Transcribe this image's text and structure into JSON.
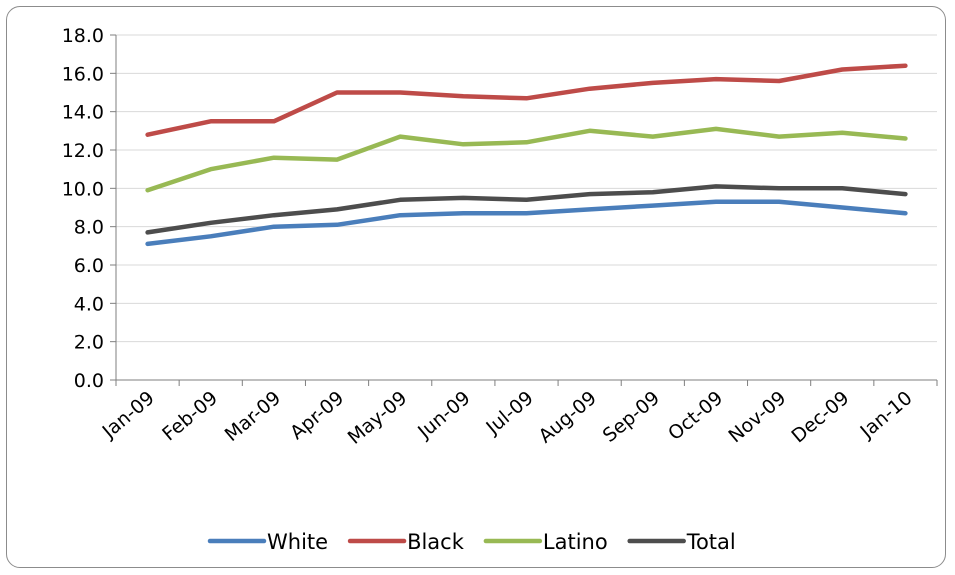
{
  "chart_data": {
    "type": "line",
    "title": "",
    "xlabel": "",
    "ylabel": "",
    "categories": [
      "Jan-09",
      "Feb-09",
      "Mar-09",
      "Apr-09",
      "May-09",
      "Jun-09",
      "Jul-09",
      "Aug-09",
      "Sep-09",
      "Oct-09",
      "Nov-09",
      "Dec-09",
      "Jan-10"
    ],
    "ylim": [
      0,
      18
    ],
    "yticks": [
      "0.0",
      "2.0",
      "4.0",
      "6.0",
      "8.0",
      "10.0",
      "12.0",
      "14.0",
      "16.0",
      "18.0"
    ],
    "grid": true,
    "legend_position": "bottom",
    "series": [
      {
        "name": "White",
        "color": "#4a7ebb",
        "values": [
          7.1,
          7.5,
          8.0,
          8.1,
          8.6,
          8.7,
          8.7,
          8.9,
          9.1,
          9.3,
          9.3,
          9.0,
          8.7
        ]
      },
      {
        "name": "Black",
        "color": "#be4b48",
        "values": [
          12.8,
          13.5,
          13.5,
          15.0,
          15.0,
          14.8,
          14.7,
          15.2,
          15.5,
          15.7,
          15.6,
          16.2,
          16.4
        ]
      },
      {
        "name": "Latino",
        "color": "#98b954",
        "values": [
          9.9,
          11.0,
          11.6,
          11.5,
          12.7,
          12.3,
          12.4,
          13.0,
          12.7,
          13.1,
          12.7,
          12.9,
          12.6
        ]
      },
      {
        "name": "Total",
        "color": "#4d4d4d",
        "values": [
          7.7,
          8.2,
          8.6,
          8.9,
          9.4,
          9.5,
          9.4,
          9.7,
          9.8,
          10.1,
          10.0,
          10.0,
          9.7
        ]
      }
    ]
  }
}
